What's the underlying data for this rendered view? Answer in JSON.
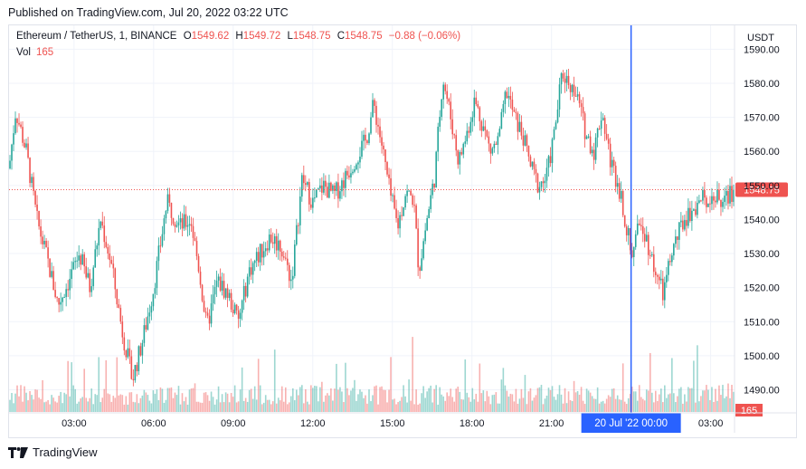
{
  "header": {
    "published": "Published on TradingView.com, Jul 20, 2022 03:22 UTC"
  },
  "legend": {
    "symbol": "Ethereum / TetherUS, 1, BINANCE",
    "o_label": "O",
    "o": "1549.62",
    "h_label": "H",
    "h": "1549.72",
    "l_label": "L",
    "l": "1548.75",
    "c_label": "C",
    "c": "1548.75",
    "change": "−0.88 (−0.06%)",
    "vol_label": "Vol",
    "vol": "165"
  },
  "footer": {
    "brand": "TradingView"
  },
  "colors": {
    "up": "#26a69a",
    "down": "#ef5350",
    "crosshair": "#2962ff",
    "price_line": "#ef5350",
    "grid": "#f0f3fa"
  },
  "chart_data": {
    "type": "candlestick",
    "currency": "USDT",
    "y_ticks": [
      1490,
      1500,
      1510,
      1520,
      1530,
      1540,
      1550,
      1560,
      1570,
      1580,
      1590
    ],
    "y_tick_labels": [
      "1490.00",
      "1500.00",
      "1510.00",
      "1520.00",
      "1530.00",
      "1540.00",
      "1550.00",
      "1560.00",
      "1570.00",
      "1580.00",
      "1590.00"
    ],
    "ylim": [
      1483.5,
      1597
    ],
    "x_ticks": [
      "03:00",
      "06:00",
      "09:00",
      "12:00",
      "15:00",
      "18:00",
      "21:00",
      "03:00"
    ],
    "x_tick_hours": [
      3,
      6,
      9,
      12,
      15,
      18,
      21,
      27
    ],
    "x_range_hours": [
      0.55,
      27.9
    ],
    "crosshair_label": "20 Jul '22   00:00",
    "crosshair_hour": 24,
    "last_price": 1548.75,
    "last_price_label": "1548.75",
    "last_volume_label": "165",
    "close_path": [
      [
        0.55,
        1555
      ],
      [
        0.8,
        1572
      ],
      [
        1.2,
        1560
      ],
      [
        1.6,
        1540
      ],
      [
        2.0,
        1528
      ],
      [
        2.4,
        1515
      ],
      [
        2.8,
        1522
      ],
      [
        3.2,
        1530
      ],
      [
        3.6,
        1520
      ],
      [
        4.0,
        1540
      ],
      [
        4.4,
        1527
      ],
      [
        4.8,
        1508
      ],
      [
        5.2,
        1493
      ],
      [
        5.6,
        1505
      ],
      [
        6.0,
        1520
      ],
      [
        6.5,
        1545
      ],
      [
        7.0,
        1538
      ],
      [
        7.4,
        1540
      ],
      [
        7.7,
        1526
      ],
      [
        8.0,
        1508
      ],
      [
        8.4,
        1522
      ],
      [
        8.8,
        1518
      ],
      [
        9.2,
        1510
      ],
      [
        9.6,
        1525
      ],
      [
        10.0,
        1530
      ],
      [
        10.4,
        1535
      ],
      [
        10.8,
        1532
      ],
      [
        11.2,
        1522
      ],
      [
        11.6,
        1552
      ],
      [
        12.0,
        1545
      ],
      [
        12.4,
        1550
      ],
      [
        12.8,
        1547
      ],
      [
        13.2,
        1552
      ],
      [
        13.6,
        1558
      ],
      [
        14.0,
        1563
      ],
      [
        14.3,
        1574
      ],
      [
        14.6,
        1562
      ],
      [
        14.9,
        1548
      ],
      [
        15.2,
        1538
      ],
      [
        15.5,
        1548
      ],
      [
        15.8,
        1546
      ],
      [
        16.0,
        1525
      ],
      [
        16.3,
        1540
      ],
      [
        16.6,
        1553
      ],
      [
        16.9,
        1582
      ],
      [
        17.2,
        1570
      ],
      [
        17.5,
        1557
      ],
      [
        17.8,
        1565
      ],
      [
        18.1,
        1575
      ],
      [
        18.4,
        1568
      ],
      [
        18.7,
        1560
      ],
      [
        19.0,
        1563
      ],
      [
        19.3,
        1578
      ],
      [
        19.6,
        1570
      ],
      [
        19.9,
        1565
      ],
      [
        20.2,
        1556
      ],
      [
        20.5,
        1550
      ],
      [
        20.8,
        1552
      ],
      [
        21.1,
        1565
      ],
      [
        21.4,
        1583
      ],
      [
        21.7,
        1580
      ],
      [
        22.0,
        1575
      ],
      [
        22.3,
        1565
      ],
      [
        22.6,
        1560
      ],
      [
        22.9,
        1572
      ],
      [
        23.2,
        1558
      ],
      [
        23.6,
        1548
      ],
      [
        24.0,
        1530
      ],
      [
        24.4,
        1540
      ],
      [
        24.8,
        1528
      ],
      [
        25.2,
        1518
      ],
      [
        25.6,
        1532
      ],
      [
        26.0,
        1540
      ],
      [
        26.5,
        1545
      ],
      [
        27.0,
        1547
      ],
      [
        27.5,
        1545
      ],
      [
        27.9,
        1548.75
      ]
    ]
  }
}
